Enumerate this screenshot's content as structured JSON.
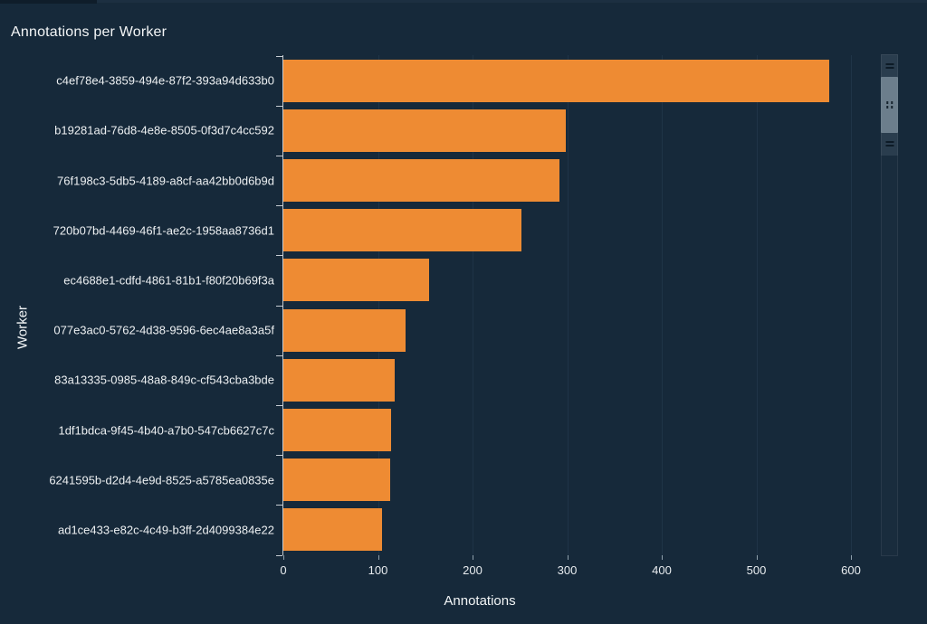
{
  "chart_data": {
    "type": "bar",
    "orientation": "horizontal",
    "title": "Annotations per Worker",
    "xlabel": "Annotations",
    "ylabel": "Worker",
    "categories": [
      "c4ef78e4-3859-494e-87f2-393a94d633b0",
      "b19281ad-76d8-4e8e-8505-0f3d7c4cc592",
      "76f198c3-5db5-4189-a8cf-aa42bb0d6b9d",
      "720b07bd-4469-46f1-ae2c-1958aa8736d1",
      "ec4688e1-cdfd-4861-81b1-f80f20b69f3a",
      "077e3ac0-5762-4d38-9596-6ec4ae8a3a5f",
      "83a13335-0985-48a8-849c-cf543cba3bde",
      "1df1bdca-9f45-4b40-a7b0-547cb6627c7c",
      "6241595b-d2d4-4e9d-8525-a5785ea0835e",
      "ad1ce433-e82c-4c49-b3ff-2d4099384e22"
    ],
    "values": [
      577,
      299,
      292,
      252,
      154,
      129,
      118,
      114,
      113,
      104
    ],
    "xticks": [
      0,
      100,
      200,
      300,
      400,
      500,
      600
    ],
    "xlim": [
      0,
      600
    ],
    "grid": "vertical-only",
    "legend": "none",
    "bar_color": "#EE8B33",
    "background_color": "#16293A"
  },
  "colors": {
    "background": "#16293A",
    "bar": "#EE8B33",
    "title_text": "#F4F6F7",
    "tick_text": "#E8ECEF",
    "gridline": "#1F3447",
    "axis_line": "#C7CDD3"
  },
  "scrollbar": {
    "has_range_handles": true,
    "thumb_visible": true
  }
}
